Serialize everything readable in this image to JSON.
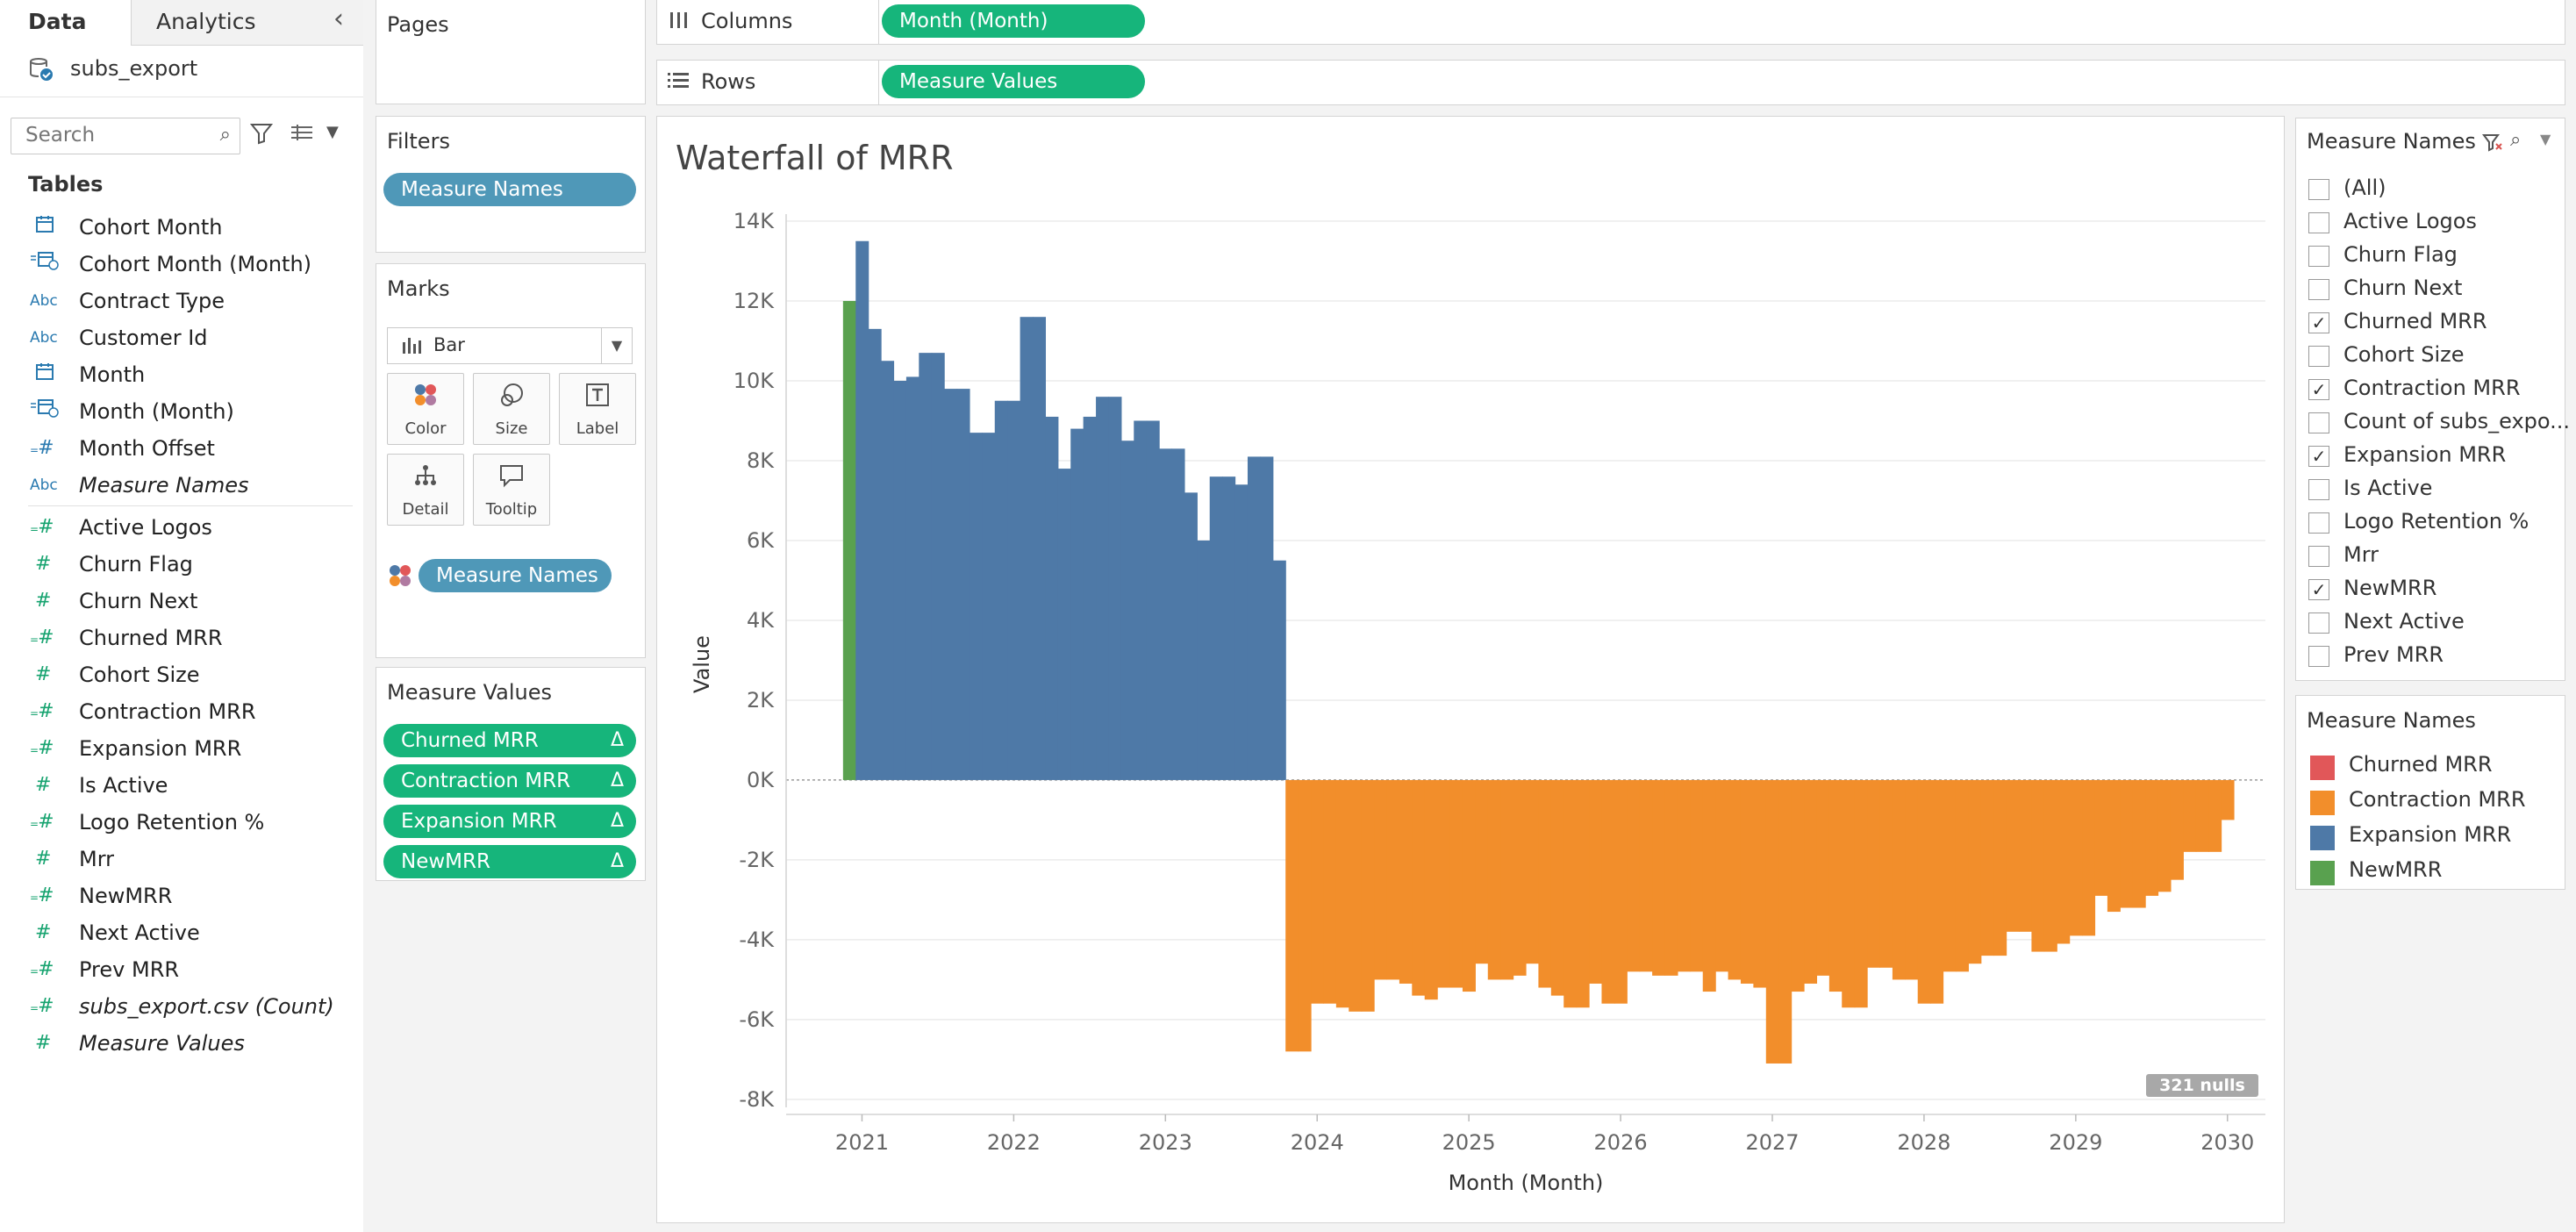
{
  "left_panel": {
    "tabs": [
      "Data",
      "Analytics"
    ],
    "collapse_icon": "chevron-left-icon",
    "datasource": "subs_export",
    "search_placeholder": "Search",
    "tables_heading": "Tables",
    "fields": [
      {
        "name": "Cohort Month",
        "icon": "calendar",
        "kind": "dim",
        "italic": false
      },
      {
        "name": "Cohort Month (Month)",
        "icon": "calc-date",
        "kind": "dim",
        "italic": false
      },
      {
        "name": "Contract Type",
        "icon": "Abc",
        "kind": "dim",
        "italic": false
      },
      {
        "name": "Customer Id",
        "icon": "Abc",
        "kind": "dim",
        "italic": false
      },
      {
        "name": "Month",
        "icon": "calendar",
        "kind": "dim",
        "italic": false
      },
      {
        "name": "Month (Month)",
        "icon": "calc-date",
        "kind": "dim",
        "italic": false
      },
      {
        "name": "Month Offset",
        "icon": "calc-hash",
        "kind": "dim",
        "italic": false
      },
      {
        "name": "Measure Names",
        "icon": "Abc",
        "kind": "dim",
        "italic": true
      },
      {
        "name": "Active Logos",
        "icon": "calc-hash",
        "kind": "meas",
        "italic": false
      },
      {
        "name": "Churn Flag",
        "icon": "#",
        "kind": "meas",
        "italic": false
      },
      {
        "name": "Churn Next",
        "icon": "#",
        "kind": "meas",
        "italic": false
      },
      {
        "name": "Churned MRR",
        "icon": "calc-hash",
        "kind": "meas",
        "italic": false
      },
      {
        "name": "Cohort Size",
        "icon": "#",
        "kind": "meas",
        "italic": false
      },
      {
        "name": "Contraction MRR",
        "icon": "calc-hash",
        "kind": "meas",
        "italic": false
      },
      {
        "name": "Expansion MRR",
        "icon": "calc-hash",
        "kind": "meas",
        "italic": false
      },
      {
        "name": "Is Active",
        "icon": "#",
        "kind": "meas",
        "italic": false
      },
      {
        "name": "Logo Retention %",
        "icon": "calc-hash",
        "kind": "meas",
        "italic": false
      },
      {
        "name": "Mrr",
        "icon": "#",
        "kind": "meas",
        "italic": false
      },
      {
        "name": "NewMRR",
        "icon": "calc-hash",
        "kind": "meas",
        "italic": false
      },
      {
        "name": "Next Active",
        "icon": "#",
        "kind": "meas",
        "italic": false
      },
      {
        "name": "Prev MRR",
        "icon": "calc-hash",
        "kind": "meas",
        "italic": false
      },
      {
        "name": "subs_export.csv (Count)",
        "icon": "calc-hash",
        "kind": "meas",
        "italic": true
      },
      {
        "name": "Measure Values",
        "icon": "#",
        "kind": "meas",
        "italic": true
      }
    ]
  },
  "cards": {
    "pages_title": "Pages",
    "filters_title": "Filters",
    "filters_pill": "Measure Names",
    "marks_title": "Marks",
    "mark_type": "Bar",
    "mark_buttons": [
      "Color",
      "Size",
      "Label",
      "Detail",
      "Tooltip"
    ],
    "marks_color_pill": "Measure Names",
    "measure_values_title": "Measure Values",
    "measure_values_pills": [
      "Churned MRR",
      "Contraction MRR",
      "Expansion MRR",
      "NewMRR"
    ],
    "delta_symbol": "Δ"
  },
  "shelves": {
    "columns_label": "Columns",
    "columns_pill": "Month (Month)",
    "rows_label": "Rows",
    "rows_pill": "Measure Values"
  },
  "filter_card": {
    "title": "Measure Names",
    "items": [
      {
        "label": "(All)",
        "checked": false
      },
      {
        "label": "Active Logos",
        "checked": false
      },
      {
        "label": "Churn Flag",
        "checked": false
      },
      {
        "label": "Churn Next",
        "checked": false
      },
      {
        "label": "Churned MRR",
        "checked": true
      },
      {
        "label": "Cohort Size",
        "checked": false
      },
      {
        "label": "Contraction MRR",
        "checked": true
      },
      {
        "label": "Count of subs_expo...",
        "checked": false
      },
      {
        "label": "Expansion MRR",
        "checked": true
      },
      {
        "label": "Is Active",
        "checked": false
      },
      {
        "label": "Logo Retention %",
        "checked": false
      },
      {
        "label": "Mrr",
        "checked": false
      },
      {
        "label": "NewMRR",
        "checked": true
      },
      {
        "label": "Next Active",
        "checked": false
      },
      {
        "label": "Prev MRR",
        "checked": false
      }
    ]
  },
  "legend": {
    "title": "Measure Names",
    "items": [
      {
        "label": "Churned MRR",
        "color": "#e15759"
      },
      {
        "label": "Contraction MRR",
        "color": "#f28e2b"
      },
      {
        "label": "Expansion MRR",
        "color": "#4e79a7"
      },
      {
        "label": "NewMRR",
        "color": "#59a14f"
      }
    ]
  },
  "nulls_badge": "321 nulls",
  "chart_data": {
    "type": "bar",
    "title": "Waterfall of MRR",
    "xlabel": "Month (Month)",
    "ylabel": "Value",
    "ylim": [
      -8200,
      14000
    ],
    "yticks": [
      14000,
      12000,
      10000,
      8000,
      6000,
      4000,
      2000,
      0,
      -2000,
      -4000,
      -6000,
      -8000
    ],
    "ytick_labels": [
      "14K",
      "12K",
      "10K",
      "8K",
      "6K",
      "4K",
      "2K",
      "0K",
      "-2K",
      "-4K",
      "-6K",
      "-8K"
    ],
    "x_range": [
      "2020-07",
      "2030-04"
    ],
    "xticks": [
      "2021",
      "2022",
      "2023",
      "2024",
      "2025",
      "2026",
      "2027",
      "2028",
      "2029",
      "2030"
    ],
    "grid": true,
    "series": [
      {
        "name": "NewMRR",
        "color": "#59a14f",
        "points": [
          {
            "x": "2020-12",
            "y": 12000
          }
        ]
      },
      {
        "name": "Expansion MRR",
        "color": "#4e79a7",
        "points": [
          {
            "x": "2021-01",
            "y": 13500
          },
          {
            "x": "2021-02",
            "y": 11300
          },
          {
            "x": "2021-03",
            "y": 10500
          },
          {
            "x": "2021-04",
            "y": 10000
          },
          {
            "x": "2021-05",
            "y": 10100
          },
          {
            "x": "2021-06",
            "y": 10700
          },
          {
            "x": "2021-07",
            "y": 10700
          },
          {
            "x": "2021-08",
            "y": 9800
          },
          {
            "x": "2021-09",
            "y": 9800
          },
          {
            "x": "2021-10",
            "y": 8700
          },
          {
            "x": "2021-11",
            "y": 8700
          },
          {
            "x": "2021-12",
            "y": 9500
          },
          {
            "x": "2022-01",
            "y": 9500
          },
          {
            "x": "2022-02",
            "y": 11600
          },
          {
            "x": "2022-03",
            "y": 11600
          },
          {
            "x": "2022-04",
            "y": 9100
          },
          {
            "x": "2022-05",
            "y": 7800
          },
          {
            "x": "2022-06",
            "y": 8800
          },
          {
            "x": "2022-07",
            "y": 9100
          },
          {
            "x": "2022-08",
            "y": 9600
          },
          {
            "x": "2022-09",
            "y": 9600
          },
          {
            "x": "2022-10",
            "y": 8500
          },
          {
            "x": "2022-11",
            "y": 9000
          },
          {
            "x": "2022-12",
            "y": 9000
          },
          {
            "x": "2023-01",
            "y": 8300
          },
          {
            "x": "2023-02",
            "y": 8300
          },
          {
            "x": "2023-03",
            "y": 7200
          },
          {
            "x": "2023-04",
            "y": 6000
          },
          {
            "x": "2023-05",
            "y": 7600
          },
          {
            "x": "2023-06",
            "y": 7600
          },
          {
            "x": "2023-07",
            "y": 7400
          },
          {
            "x": "2023-08",
            "y": 8100
          },
          {
            "x": "2023-09",
            "y": 8100
          },
          {
            "x": "2023-10",
            "y": 5500
          }
        ]
      },
      {
        "name": "Contraction MRR",
        "color": "#f28e2b",
        "points": [
          {
            "x": "2023-11",
            "y": -6800
          },
          {
            "x": "2023-12",
            "y": -6800
          },
          {
            "x": "2024-01",
            "y": -5600
          },
          {
            "x": "2024-02",
            "y": -5600
          },
          {
            "x": "2024-03",
            "y": -5700
          },
          {
            "x": "2024-04",
            "y": -5800
          },
          {
            "x": "2024-05",
            "y": -5800
          },
          {
            "x": "2024-06",
            "y": -5000
          },
          {
            "x": "2024-07",
            "y": -5000
          },
          {
            "x": "2024-08",
            "y": -5100
          },
          {
            "x": "2024-09",
            "y": -5400
          },
          {
            "x": "2024-10",
            "y": -5500
          },
          {
            "x": "2024-11",
            "y": -5200
          },
          {
            "x": "2024-12",
            "y": -5200
          },
          {
            "x": "2025-01",
            "y": -5300
          },
          {
            "x": "2025-02",
            "y": -4600
          },
          {
            "x": "2025-03",
            "y": -5000
          },
          {
            "x": "2025-04",
            "y": -5000
          },
          {
            "x": "2025-05",
            "y": -4900
          },
          {
            "x": "2025-06",
            "y": -4600
          },
          {
            "x": "2025-07",
            "y": -5200
          },
          {
            "x": "2025-08",
            "y": -5400
          },
          {
            "x": "2025-09",
            "y": -5700
          },
          {
            "x": "2025-10",
            "y": -5700
          },
          {
            "x": "2025-11",
            "y": -5100
          },
          {
            "x": "2025-12",
            "y": -5600
          },
          {
            "x": "2026-01",
            "y": -5600
          },
          {
            "x": "2026-02",
            "y": -4800
          },
          {
            "x": "2026-03",
            "y": -4800
          },
          {
            "x": "2026-04",
            "y": -4900
          },
          {
            "x": "2026-05",
            "y": -4900
          },
          {
            "x": "2026-06",
            "y": -4800
          },
          {
            "x": "2026-07",
            "y": -4800
          },
          {
            "x": "2026-08",
            "y": -5300
          },
          {
            "x": "2026-09",
            "y": -4800
          },
          {
            "x": "2026-10",
            "y": -5000
          },
          {
            "x": "2026-11",
            "y": -5100
          },
          {
            "x": "2026-12",
            "y": -5200
          },
          {
            "x": "2027-01",
            "y": -7100
          },
          {
            "x": "2027-02",
            "y": -7100
          },
          {
            "x": "2027-03",
            "y": -5300
          },
          {
            "x": "2027-04",
            "y": -5100
          },
          {
            "x": "2027-05",
            "y": -4900
          },
          {
            "x": "2027-06",
            "y": -5300
          },
          {
            "x": "2027-07",
            "y": -5700
          },
          {
            "x": "2027-08",
            "y": -5700
          },
          {
            "x": "2027-09",
            "y": -4700
          },
          {
            "x": "2027-10",
            "y": -4700
          },
          {
            "x": "2027-11",
            "y": -5000
          },
          {
            "x": "2027-12",
            "y": -5000
          },
          {
            "x": "2028-01",
            "y": -5600
          },
          {
            "x": "2028-02",
            "y": -5600
          },
          {
            "x": "2028-03",
            "y": -4800
          },
          {
            "x": "2028-04",
            "y": -4800
          },
          {
            "x": "2028-05",
            "y": -4600
          },
          {
            "x": "2028-06",
            "y": -4400
          },
          {
            "x": "2028-07",
            "y": -4400
          },
          {
            "x": "2028-08",
            "y": -3800
          },
          {
            "x": "2028-09",
            "y": -3800
          },
          {
            "x": "2028-10",
            "y": -4300
          },
          {
            "x": "2028-11",
            "y": -4300
          },
          {
            "x": "2028-12",
            "y": -4100
          },
          {
            "x": "2029-01",
            "y": -3900
          },
          {
            "x": "2029-02",
            "y": -3900
          },
          {
            "x": "2029-03",
            "y": -2900
          },
          {
            "x": "2029-04",
            "y": -3300
          },
          {
            "x": "2029-05",
            "y": -3200
          },
          {
            "x": "2029-06",
            "y": -3200
          },
          {
            "x": "2029-07",
            "y": -2900
          },
          {
            "x": "2029-08",
            "y": -2800
          },
          {
            "x": "2029-09",
            "y": -2500
          },
          {
            "x": "2029-10",
            "y": -1800
          },
          {
            "x": "2029-11",
            "y": -1800
          },
          {
            "x": "2029-12",
            "y": -1800
          },
          {
            "x": "2030-01",
            "y": -1000
          }
        ]
      }
    ]
  }
}
